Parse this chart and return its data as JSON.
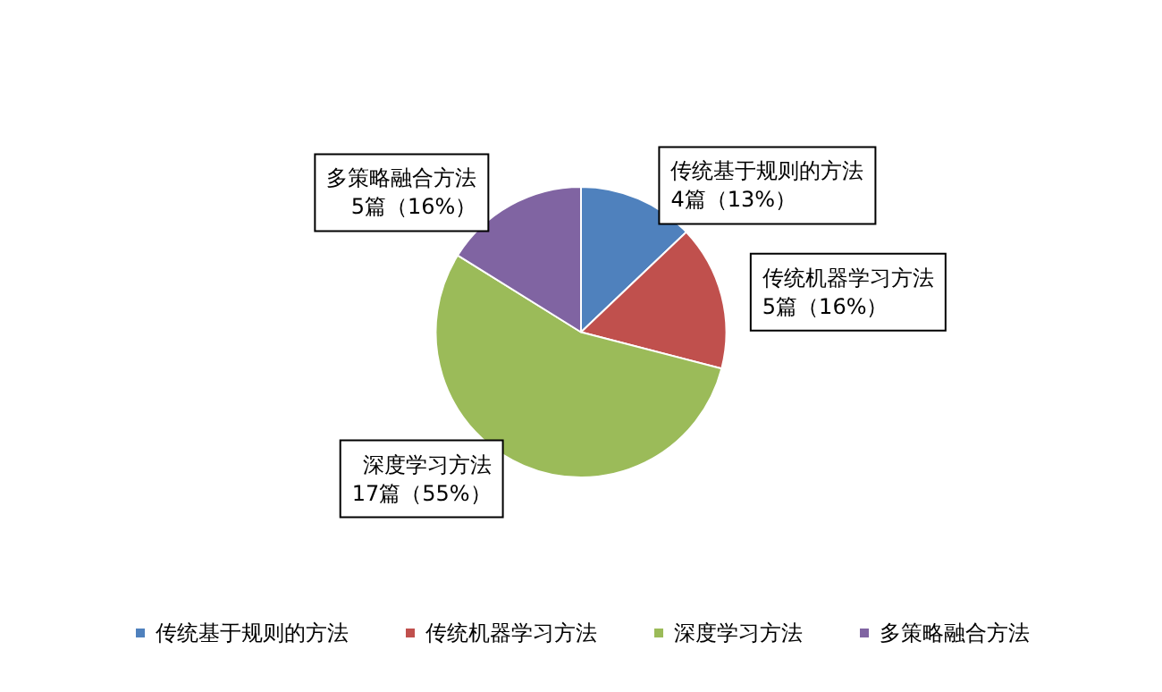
{
  "chart_data": {
    "type": "pie",
    "categories": [
      "传统基于规则的方法",
      "传统机器学习方法",
      "深度学习方法",
      "多策略融合方法"
    ],
    "values": [
      4,
      5,
      17,
      5
    ],
    "value_labels": [
      "4篇（13%）",
      "5篇（16%）",
      "17篇（55%）",
      "5篇（16%）"
    ],
    "colors": [
      "#4f81bd",
      "#c0504d",
      "#9bbb59",
      "#8064a2"
    ],
    "legend": "bottom"
  }
}
